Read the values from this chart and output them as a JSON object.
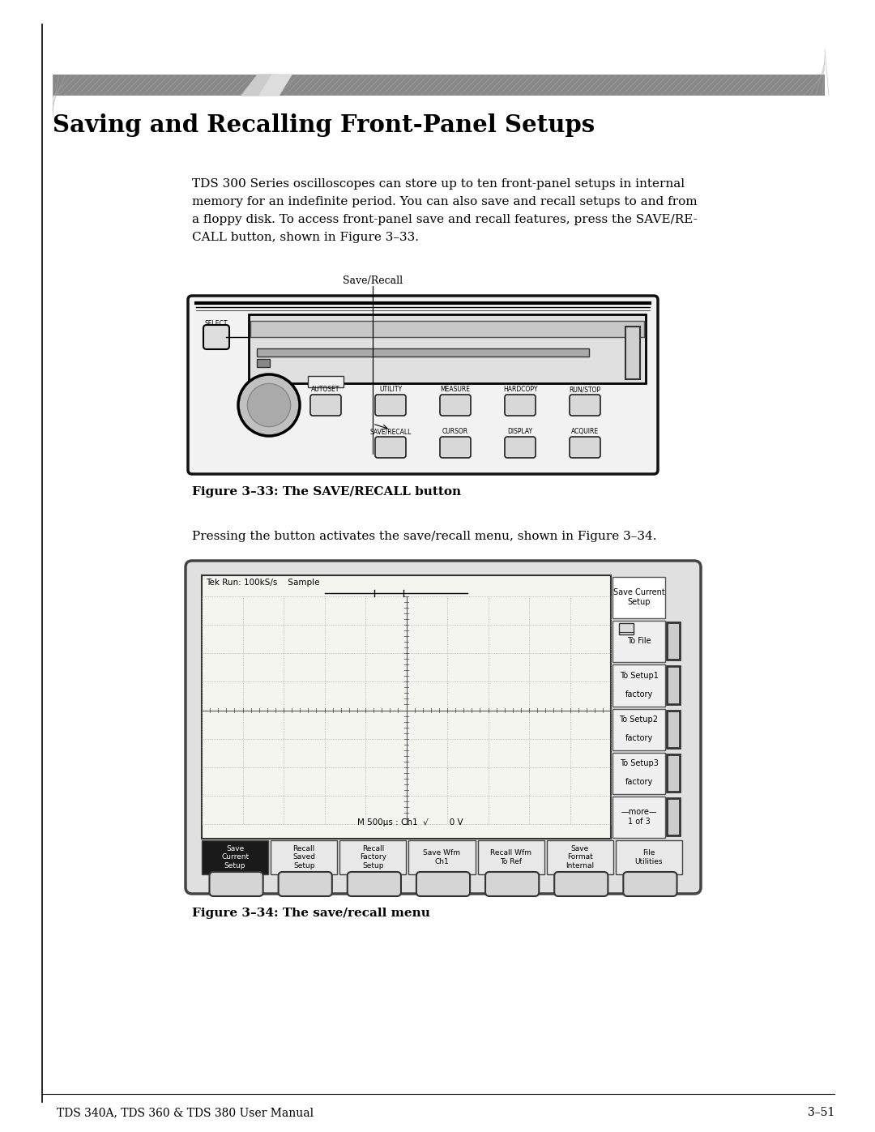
{
  "page_title": "Saving and Recalling Front-Panel Setups",
  "background_color": "#ffffff",
  "body_text_line1": "TDS 300 Series oscilloscopes can store up to ten front-panel setups in internal",
  "body_text_line2": "memory for an indefinite period. You can also save and recall setups to and from",
  "body_text_line3": "a floppy disk. To access front-panel save and recall features, press the SAVE/RE-",
  "body_text_line4": "CALL button, shown in Figure 3–33.",
  "fig33_label": "Save/Recall",
  "fig33_caption": "Figure 3–33: The SAVE/RECALL button",
  "fig34_intro": "Pressing the button activates the save/recall menu, shown in Figure 3–34.",
  "fig34_caption": "Figure 3–34: The save/recall menu",
  "footer_left": "TDS 340A, TDS 360 & TDS 380 User Manual",
  "footer_right": "3–51",
  "menu_items_right": [
    "Save Current\nSetup",
    "To File",
    "To Setup1\n\nfactory",
    "To Setup2\n\nfactory",
    "To Setup3\n\nfactory",
    "—more—\n1 of 3"
  ],
  "menu_items_bottom": [
    "Save\nCurrent\nSetup",
    "Recall\nSaved\nSetup",
    "Recall\nFactory\nSetup",
    "Save Wfm\nCh1",
    "Recall Wfm\nTo Ref",
    "Save\nFormat\nInternal",
    "File\nUtilities"
  ],
  "oscilloscope_status": "Tek Run: 100kS/s    Sample",
  "oscilloscope_bottom_status": "M 500μs : Ch1  √        0 V"
}
